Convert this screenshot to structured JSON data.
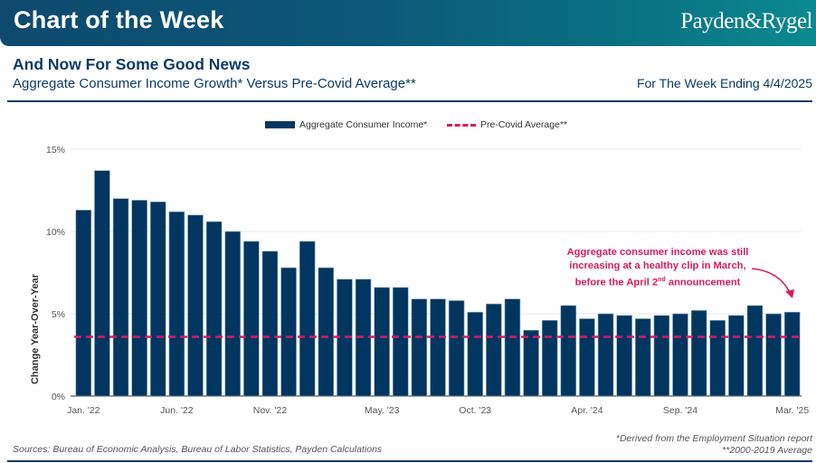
{
  "banner": {
    "title": "Chart of the Week",
    "brand": "Payden&Rygel"
  },
  "header": {
    "headline": "And Now For Some Good News",
    "subtitle": "Aggregate Consumer Income Growth* Versus Pre-Covid Average**",
    "week_label": "For The Week Ending 4/4/2025"
  },
  "annotation": {
    "line1": "Aggregate consumer income was still",
    "line2": "increasing at a healthy clip in March,",
    "line3_pre": "before the April 2",
    "line3_sup": "nd",
    "line3_post": " announcement",
    "color": "#d81b60"
  },
  "footer": {
    "sources": "Sources: Bureau of Economic Analysis, Bureau of Labor Statistics, Payden Calculations",
    "note1": "*Derived from the Employment Situation report",
    "note2": "**2000-2019 Average"
  },
  "colors": {
    "bar": "#003660",
    "average": "#d81b60",
    "brand_dark": "#0d3a66"
  },
  "chart_data": {
    "type": "bar",
    "title": "Aggregate Consumer Income Growth* Versus Pre-Covid Average**",
    "xlabel": "",
    "ylabel": "Change Year-Over-Year",
    "ylim": [
      0,
      15
    ],
    "yticks": [
      0,
      5,
      10,
      15
    ],
    "ytick_labels": [
      "0%",
      "5%",
      "10%",
      "15%"
    ],
    "grid": true,
    "legend_position": "top-center",
    "legend": [
      "Aggregate Consumer Income*",
      "Pre-Covid Average**"
    ],
    "categories": [
      "Jan. '22",
      "Feb. '22",
      "Mar. '22",
      "Apr. '22",
      "May. '22",
      "Jun. '22",
      "Jul. '22",
      "Aug. '22",
      "Sep. '22",
      "Oct. '22",
      "Nov. '22",
      "Dec. '22",
      "Jan. '23",
      "Feb. '23",
      "Mar. '23",
      "Apr. '23",
      "May. '23",
      "Jun. '23",
      "Jul. '23",
      "Aug. '23",
      "Sep. '23",
      "Oct. '23",
      "Nov. '23",
      "Dec. '23",
      "Jan. '24",
      "Feb. '24",
      "Mar. '24",
      "Apr. '24",
      "May. '24",
      "Jun. '24",
      "Jul. '24",
      "Aug. '24",
      "Sep. '24",
      "Oct. '24",
      "Nov. '24",
      "Dec. '24",
      "Jan. '25",
      "Feb. '25",
      "Mar. '25"
    ],
    "xtick_labels": [
      {
        "index": 0,
        "label": "Jan. '22"
      },
      {
        "index": 5,
        "label": "Jun. '22"
      },
      {
        "index": 10,
        "label": "Nov. '22"
      },
      {
        "index": 16,
        "label": "May. '23"
      },
      {
        "index": 21,
        "label": "Oct. '23"
      },
      {
        "index": 27,
        "label": "Apr. '24"
      },
      {
        "index": 32,
        "label": "Sep. '24"
      },
      {
        "index": 38,
        "label": "Mar. '25"
      }
    ],
    "series": [
      {
        "name": "Aggregate Consumer Income*",
        "type": "bar",
        "values": [
          11.3,
          13.7,
          12.0,
          11.9,
          11.8,
          11.2,
          11.0,
          10.6,
          10.0,
          9.4,
          8.8,
          7.8,
          9.4,
          7.8,
          7.1,
          7.1,
          6.6,
          6.6,
          5.9,
          5.9,
          5.8,
          5.1,
          5.6,
          5.9,
          4.0,
          4.6,
          5.5,
          4.7,
          5.0,
          4.9,
          4.7,
          4.9,
          5.0,
          5.2,
          4.6,
          4.9,
          5.5,
          5.0,
          5.1
        ]
      },
      {
        "name": "Pre-Covid Average**",
        "type": "hline",
        "value": 3.6
      }
    ]
  }
}
